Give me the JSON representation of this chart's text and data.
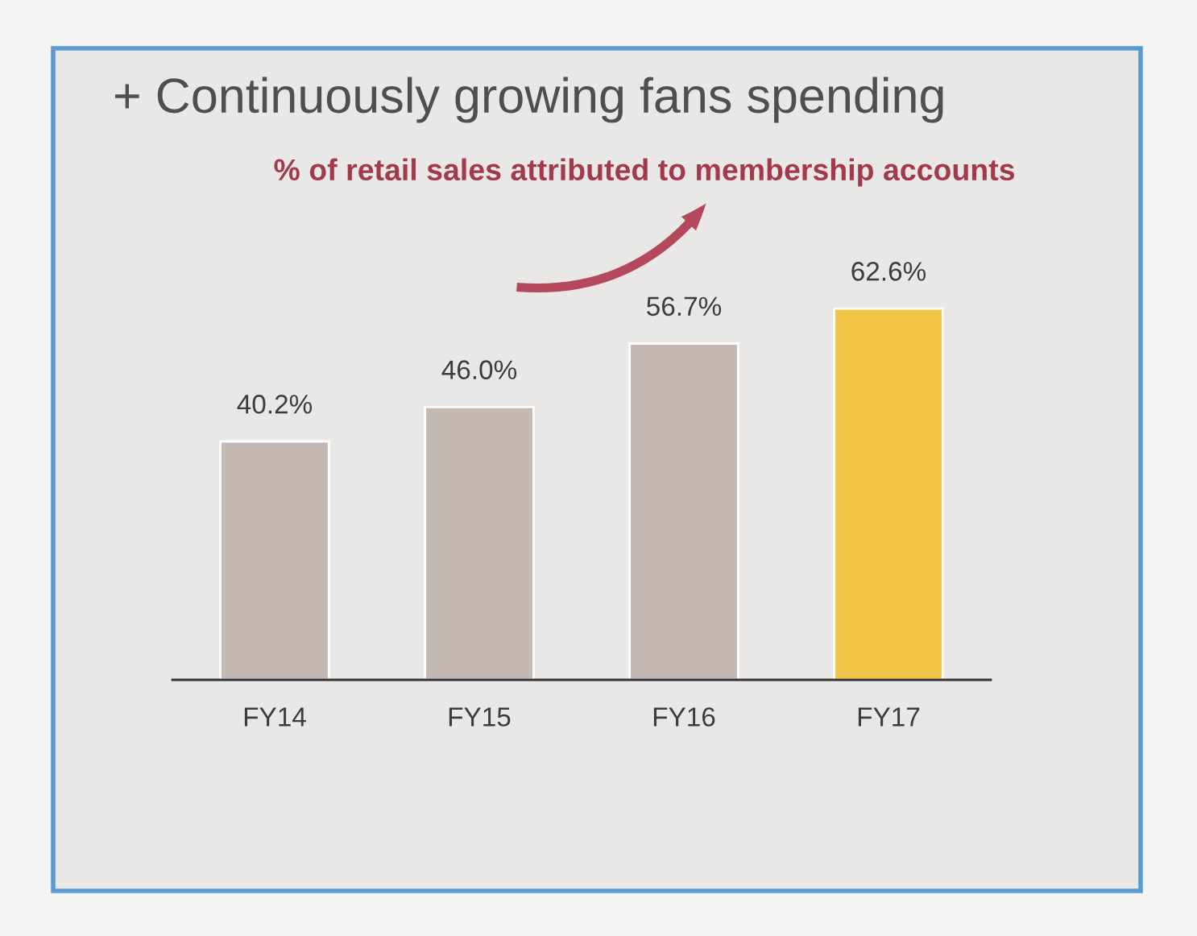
{
  "chart_data": {
    "type": "bar",
    "title": "+ Continuously growing fans spending",
    "subtitle": "% of retail sales attributed to membership accounts",
    "categories": [
      "FY14",
      "FY15",
      "FY16",
      "FY17"
    ],
    "values": [
      40.2,
      46.0,
      56.7,
      62.6
    ],
    "colors": [
      "#c4b8b2",
      "#c4b8b2",
      "#c4b8b2",
      "#f0c446"
    ],
    "value_labels": [
      "40.2%",
      "46.0%",
      "56.7%",
      "62.6%"
    ],
    "tick_labels": "x"
  }
}
